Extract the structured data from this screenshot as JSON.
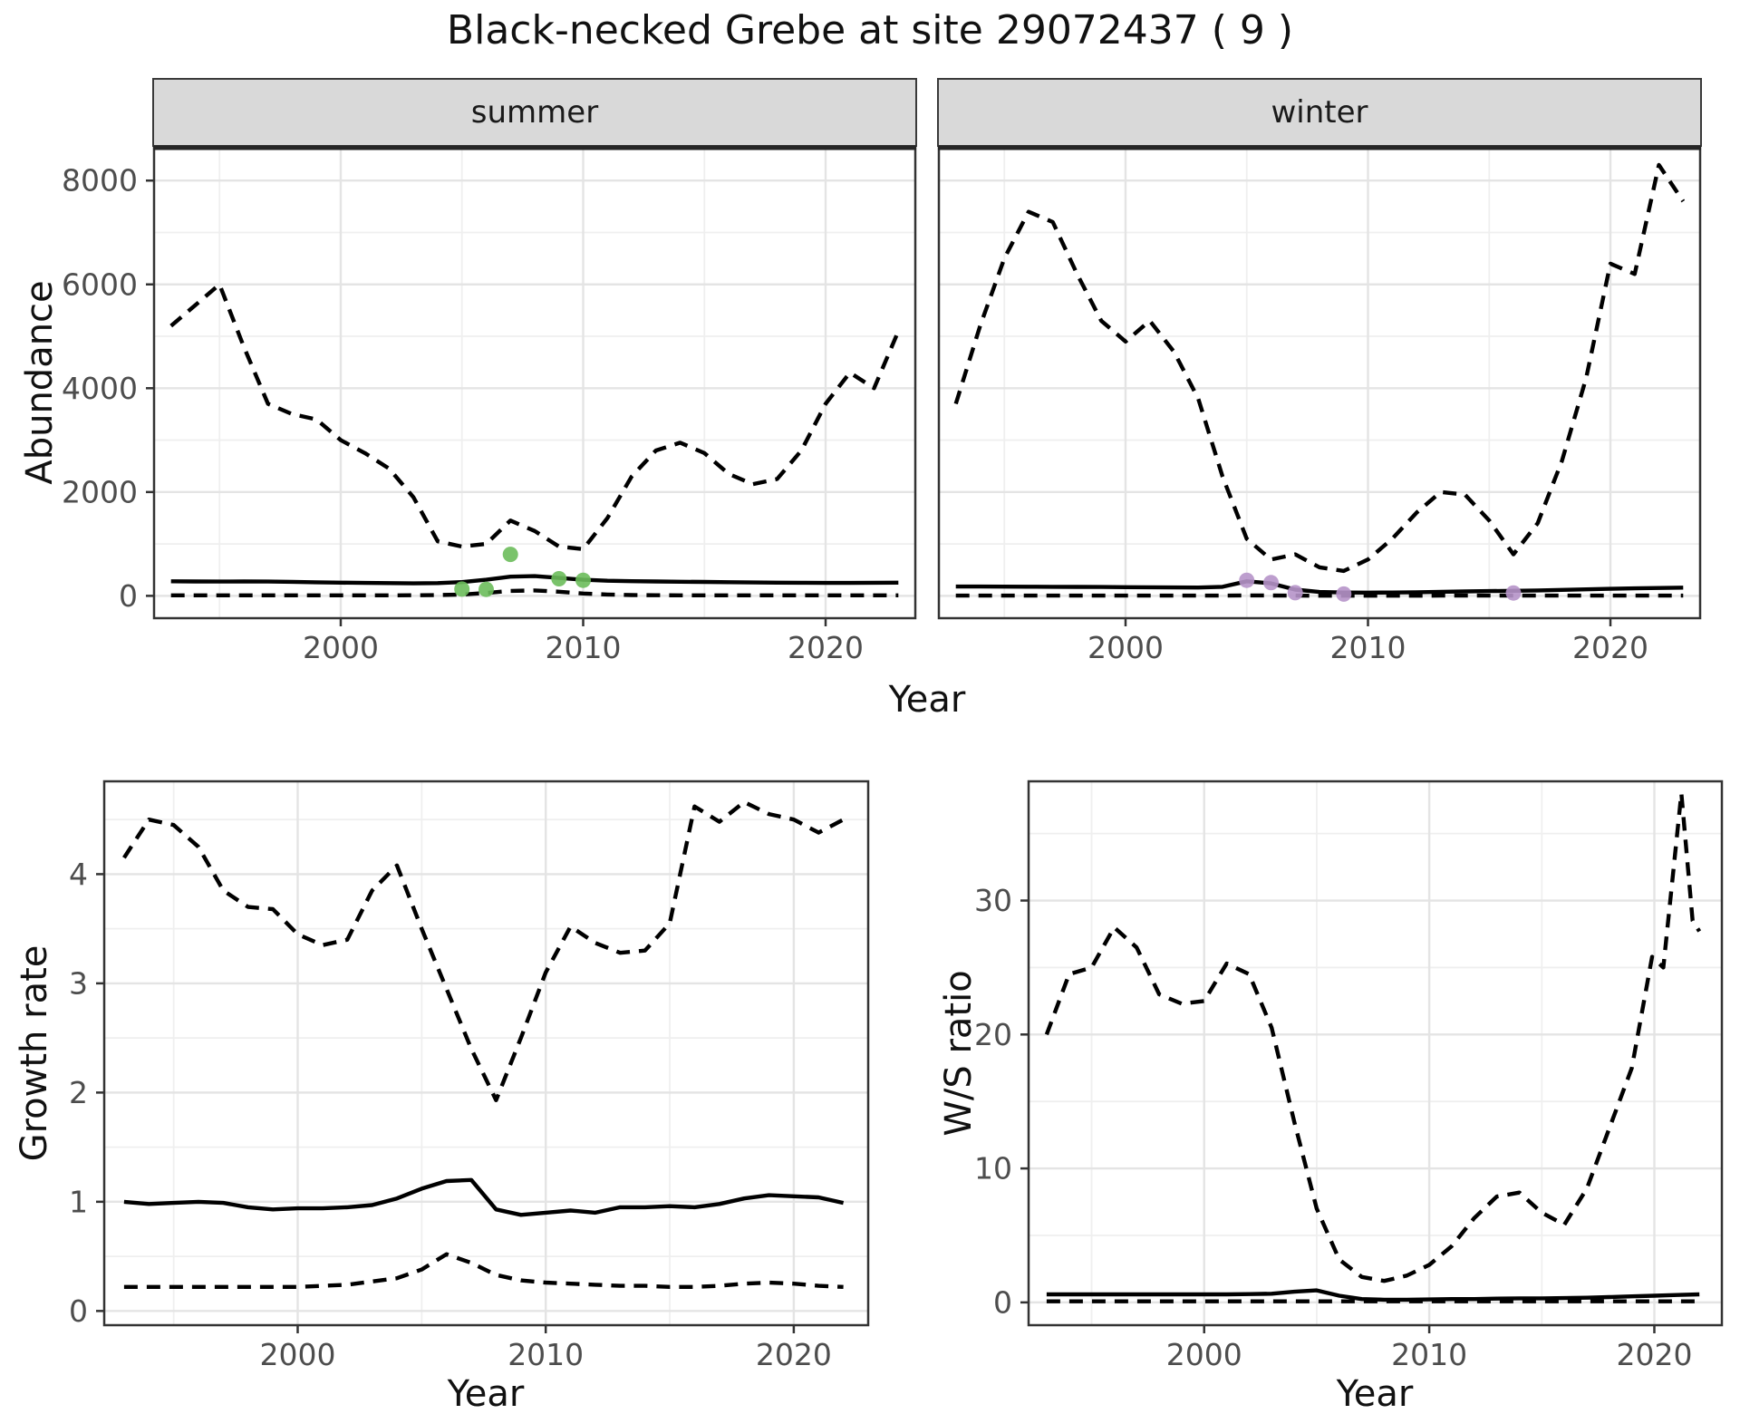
{
  "title": "Black-necked Grebe at site 29072437 ( 9 )",
  "colors": {
    "summer_point": "#6CBC5B",
    "winter_point": "#B694C9",
    "series_line": "#000000",
    "strip_bg": "#D9D9D9",
    "panel_border": "#333333",
    "grid_major": "#E4E4E4",
    "grid_minor": "#EFEFEF",
    "tick_text": "#4D4D4D",
    "title_text": "#111111"
  },
  "chart_data": [
    {
      "id": "summer",
      "type": "line",
      "facet_label": "summer",
      "xlabel": "Year",
      "ylabel": "Abundance",
      "xlim": [
        1992.3,
        2023.7
      ],
      "ylim": [
        -430,
        8650
      ],
      "xticks": [
        2000,
        2010,
        2020
      ],
      "yticks": [
        0,
        2000,
        4000,
        6000,
        8000
      ],
      "x_minor": [
        1995,
        2005,
        2015
      ],
      "y_minor": [
        1000,
        3000,
        5000,
        7000
      ],
      "series": [
        {
          "name": "upper_ci",
          "style": "dashed",
          "x": [
            1993,
            1994,
            1995,
            1996,
            1997,
            1998,
            1999,
            2000,
            2001,
            2002,
            2003,
            2004,
            2005,
            2006,
            2007,
            2008,
            2009,
            2010,
            2011,
            2012,
            2013,
            2014,
            2015,
            2016,
            2017,
            2018,
            2019,
            2020,
            2021,
            2022,
            2023
          ],
          "y": [
            5200,
            5600,
            6000,
            4800,
            3700,
            3500,
            3400,
            3000,
            2750,
            2450,
            1900,
            1050,
            950,
            1000,
            1450,
            1250,
            950,
            900,
            1500,
            2300,
            2800,
            2950,
            2750,
            2350,
            2150,
            2250,
            2800,
            3700,
            4300,
            4000,
            5100
          ]
        },
        {
          "name": "lower_ci",
          "style": "dashed",
          "x": [
            1993,
            1994,
            1995,
            1996,
            1997,
            1998,
            1999,
            2000,
            2001,
            2002,
            2003,
            2004,
            2005,
            2006,
            2007,
            2008,
            2009,
            2010,
            2011,
            2012,
            2013,
            2014,
            2015,
            2016,
            2017,
            2018,
            2019,
            2020,
            2021,
            2022,
            2023
          ],
          "y": [
            10,
            10,
            10,
            10,
            10,
            10,
            10,
            10,
            10,
            10,
            12,
            15,
            25,
            55,
            95,
            105,
            80,
            45,
            25,
            15,
            12,
            10,
            10,
            10,
            10,
            10,
            10,
            10,
            10,
            10,
            10
          ]
        },
        {
          "name": "fit",
          "style": "solid",
          "x": [
            1993,
            1994,
            1995,
            1996,
            1997,
            1998,
            1999,
            2000,
            2001,
            2002,
            2003,
            2004,
            2005,
            2006,
            2007,
            2008,
            2009,
            2010,
            2011,
            2012,
            2013,
            2014,
            2015,
            2016,
            2017,
            2018,
            2019,
            2020,
            2021,
            2022,
            2023
          ],
          "y": [
            280,
            278,
            276,
            278,
            275,
            270,
            262,
            255,
            250,
            245,
            240,
            245,
            265,
            310,
            370,
            380,
            345,
            310,
            292,
            283,
            278,
            272,
            268,
            263,
            258,
            255,
            252,
            250,
            250,
            252,
            255
          ]
        }
      ],
      "points": {
        "name": "observed",
        "color": "#6CBC5B",
        "x": [
          2005,
          2006,
          2007,
          2009,
          2010
        ],
        "y": [
          130,
          125,
          800,
          330,
          300
        ]
      }
    },
    {
      "id": "winter",
      "type": "line",
      "facet_label": "winter",
      "xlabel": "Year",
      "ylabel": "Abundance",
      "xlim": [
        1992.3,
        2023.7
      ],
      "ylim": [
        -430,
        8650
      ],
      "xticks": [
        2000,
        2010,
        2020
      ],
      "yticks": [
        0,
        2000,
        4000,
        6000,
        8000
      ],
      "x_minor": [
        1995,
        2005,
        2015
      ],
      "y_minor": [
        1000,
        3000,
        5000,
        7000
      ],
      "series": [
        {
          "name": "upper_ci",
          "style": "dashed",
          "x": [
            1993,
            1994,
            1995,
            1996,
            1997,
            1998,
            1999,
            2000,
            2001,
            2002,
            2003,
            2004,
            2005,
            2006,
            2007,
            2008,
            2009,
            2010,
            2011,
            2012,
            2013,
            2014,
            2015,
            2016,
            2017,
            2018,
            2019,
            2020,
            2021,
            2022,
            2023
          ],
          "y": [
            3700,
            5200,
            6500,
            7400,
            7200,
            6200,
            5300,
            4900,
            5300,
            4700,
            3800,
            2300,
            1100,
            700,
            800,
            550,
            480,
            700,
            1100,
            1600,
            2000,
            1950,
            1450,
            800,
            1400,
            2600,
            4200,
            6400,
            6200,
            8300,
            7600
          ]
        },
        {
          "name": "lower_ci",
          "style": "dashed",
          "x": [
            1993,
            1994,
            1995,
            1996,
            1997,
            1998,
            1999,
            2000,
            2001,
            2002,
            2003,
            2004,
            2005,
            2006,
            2007,
            2008,
            2009,
            2010,
            2011,
            2012,
            2013,
            2014,
            2015,
            2016,
            2017,
            2018,
            2019,
            2020,
            2021,
            2022,
            2023
          ],
          "y": [
            5,
            5,
            5,
            5,
            5,
            5,
            5,
            5,
            5,
            5,
            5,
            5,
            8,
            6,
            4,
            3,
            3,
            3,
            3,
            3,
            4,
            4,
            4,
            4,
            5,
            5,
            5,
            5,
            5,
            5,
            5
          ]
        },
        {
          "name": "fit",
          "style": "solid",
          "x": [
            1993,
            1994,
            1995,
            1996,
            1997,
            1998,
            1999,
            2000,
            2001,
            2002,
            2003,
            2004,
            2005,
            2006,
            2007,
            2008,
            2009,
            2010,
            2011,
            2012,
            2013,
            2014,
            2015,
            2016,
            2017,
            2018,
            2019,
            2020,
            2021,
            2022,
            2023
          ],
          "y": [
            180,
            180,
            178,
            176,
            174,
            172,
            170,
            168,
            165,
            162,
            160,
            175,
            280,
            240,
            120,
            75,
            65,
            62,
            65,
            70,
            78,
            85,
            92,
            98,
            105,
            115,
            125,
            135,
            145,
            152,
            158
          ]
        }
      ],
      "points": {
        "name": "observed",
        "color": "#B694C9",
        "x": [
          2005,
          2006,
          2007,
          2009,
          2016
        ],
        "y": [
          300,
          255,
          60,
          35,
          55
        ]
      }
    },
    {
      "id": "growth",
      "type": "line",
      "facet_label": "",
      "xlabel": "Year",
      "ylabel": "Growth rate",
      "xlim": [
        1992.2,
        2023.0
      ],
      "ylim": [
        -0.13,
        4.85
      ],
      "xticks": [
        2000,
        2010,
        2020
      ],
      "yticks": [
        0,
        1,
        2,
        3,
        4
      ],
      "x_minor": [
        1995,
        2005,
        2015
      ],
      "y_minor": [
        0.5,
        1.5,
        2.5,
        3.5,
        4.5
      ],
      "series": [
        {
          "name": "upper_ci",
          "style": "dashed",
          "x": [
            1993,
            1994,
            1995,
            1996,
            1997,
            1998,
            1999,
            2000,
            2001,
            2002,
            2003,
            2004,
            2005,
            2006,
            2007,
            2008,
            2009,
            2010,
            2011,
            2012,
            2013,
            2014,
            2015,
            2016,
            2017,
            2018,
            2019,
            2020,
            2021,
            2022
          ],
          "y": [
            4.15,
            4.5,
            4.45,
            4.25,
            3.85,
            3.7,
            3.68,
            3.45,
            3.35,
            3.4,
            3.85,
            4.08,
            3.5,
            2.95,
            2.4,
            1.93,
            2.5,
            3.1,
            3.52,
            3.37,
            3.28,
            3.3,
            3.55,
            4.62,
            4.48,
            4.66,
            4.55,
            4.5,
            4.38,
            4.5
          ]
        },
        {
          "name": "lower_ci",
          "style": "dashed",
          "x": [
            1993,
            1994,
            1995,
            1996,
            1997,
            1998,
            1999,
            2000,
            2001,
            2002,
            2003,
            2004,
            2005,
            2006,
            2007,
            2008,
            2009,
            2010,
            2011,
            2012,
            2013,
            2014,
            2015,
            2016,
            2017,
            2018,
            2019,
            2020,
            2021,
            2022
          ],
          "y": [
            0.22,
            0.22,
            0.22,
            0.22,
            0.22,
            0.22,
            0.22,
            0.22,
            0.23,
            0.24,
            0.27,
            0.3,
            0.38,
            0.52,
            0.44,
            0.33,
            0.28,
            0.26,
            0.25,
            0.24,
            0.23,
            0.23,
            0.22,
            0.22,
            0.23,
            0.25,
            0.26,
            0.25,
            0.23,
            0.22
          ]
        },
        {
          "name": "fit",
          "style": "solid",
          "x": [
            1993,
            1994,
            1995,
            1996,
            1997,
            1998,
            1999,
            2000,
            2001,
            2002,
            2003,
            2004,
            2005,
            2006,
            2007,
            2008,
            2009,
            2010,
            2011,
            2012,
            2013,
            2014,
            2015,
            2016,
            2017,
            2018,
            2019,
            2020,
            2021,
            2022
          ],
          "y": [
            1.0,
            0.98,
            0.99,
            1.0,
            0.99,
            0.95,
            0.93,
            0.94,
            0.94,
            0.95,
            0.97,
            1.03,
            1.12,
            1.19,
            1.2,
            0.93,
            0.88,
            0.9,
            0.92,
            0.9,
            0.95,
            0.95,
            0.96,
            0.95,
            0.98,
            1.03,
            1.06,
            1.05,
            1.04,
            0.99
          ]
        }
      ],
      "points": null
    },
    {
      "id": "ws",
      "type": "line",
      "facet_label": "",
      "xlabel": "Year",
      "ylabel": "W/S ratio",
      "xlim": [
        1992.2,
        2023.0
      ],
      "ylim": [
        -1.7,
        38.9
      ],
      "xticks": [
        2000,
        2010,
        2020
      ],
      "yticks": [
        0,
        10,
        20,
        30
      ],
      "x_minor": [
        1995,
        2005,
        2015
      ],
      "y_minor": [
        5,
        15,
        25,
        35
      ],
      "series": [
        {
          "name": "upper_ci",
          "style": "dashed",
          "x": [
            1993,
            1994,
            1995,
            1996,
            1997,
            1998,
            1999,
            2000,
            2001,
            2002,
            2003,
            2004,
            2005,
            2006,
            2007,
            2008,
            2009,
            2010,
            2011,
            2012,
            2013,
            2014,
            2015,
            2016,
            2017,
            2018,
            2019,
            2019.9,
            2020.4,
            2021.2,
            2021.7,
            2022
          ],
          "y": [
            20,
            24.5,
            25,
            28,
            26.5,
            23,
            22.3,
            22.5,
            25.3,
            24.5,
            20.5,
            13.5,
            7,
            3.2,
            1.9,
            1.6,
            2,
            2.8,
            4.2,
            6.3,
            7.9,
            8.2,
            6.7,
            5.8,
            8.5,
            13,
            17.5,
            25.8,
            25,
            38,
            28.5,
            27.7
          ]
        },
        {
          "name": "lower_ci",
          "style": "dashed",
          "x": [
            1993,
            1994,
            1995,
            1996,
            1997,
            1998,
            1999,
            2000,
            2001,
            2002,
            2003,
            2004,
            2005,
            2006,
            2007,
            2008,
            2009,
            2010,
            2011,
            2012,
            2013,
            2014,
            2015,
            2016,
            2017,
            2018,
            2019,
            2020,
            2021,
            2022
          ],
          "y": [
            0.08,
            0.08,
            0.08,
            0.08,
            0.08,
            0.08,
            0.08,
            0.08,
            0.08,
            0.08,
            0.08,
            0.08,
            0.08,
            0.08,
            0.08,
            0.08,
            0.08,
            0.08,
            0.08,
            0.08,
            0.08,
            0.08,
            0.08,
            0.08,
            0.08,
            0.08,
            0.08,
            0.08,
            0.08,
            0.08
          ]
        },
        {
          "name": "fit",
          "style": "solid",
          "x": [
            1993,
            1994,
            1995,
            1996,
            1997,
            1998,
            1999,
            2000,
            2001,
            2002,
            2003,
            2004,
            2005,
            2006,
            2007,
            2008,
            2009,
            2010,
            2011,
            2012,
            2013,
            2014,
            2015,
            2016,
            2017,
            2018,
            2019,
            2020,
            2021,
            2022
          ],
          "y": [
            0.6,
            0.6,
            0.6,
            0.6,
            0.6,
            0.6,
            0.6,
            0.6,
            0.6,
            0.62,
            0.65,
            0.8,
            0.9,
            0.5,
            0.25,
            0.2,
            0.2,
            0.22,
            0.25,
            0.25,
            0.28,
            0.3,
            0.3,
            0.32,
            0.35,
            0.4,
            0.45,
            0.5,
            0.55,
            0.6
          ]
        }
      ],
      "points": null
    }
  ]
}
